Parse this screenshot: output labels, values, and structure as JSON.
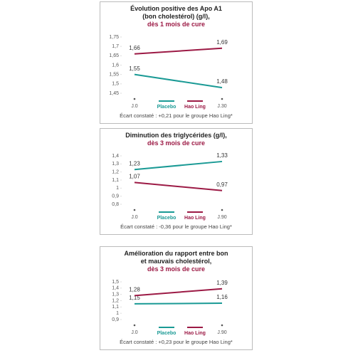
{
  "chart_data": [
    {
      "type": "line",
      "title": "Évolution positive des Apo A1 (bon cholestérol) (g/l),",
      "subtitle": "dès 1 mois de cure",
      "categories": [
        "J.0",
        "J.30"
      ],
      "series": [
        {
          "name": "Placebo",
          "color": "#1a9a95",
          "values": [
            1.55,
            1.48
          ],
          "value_labels": [
            "1,55",
            "1,48"
          ]
        },
        {
          "name": "Hao Ling",
          "color": "#9c1a45",
          "values": [
            1.66,
            1.69
          ],
          "value_labels": [
            "1,66",
            "1,69"
          ]
        }
      ],
      "ylim": [
        1.45,
        1.75
      ],
      "yticks": [
        {
          "value": 1.45,
          "label": "1,45"
        },
        {
          "value": 1.5,
          "label": "1,5"
        },
        {
          "value": 1.55,
          "label": "1,55"
        },
        {
          "value": 1.6,
          "label": "1,6"
        },
        {
          "value": 1.65,
          "label": "1,65"
        },
        {
          "value": 1.7,
          "label": "1,7"
        },
        {
          "value": 1.75,
          "label": "1,75"
        }
      ],
      "note": "Écart constaté : +0,21 pour le groupe Hao Ling*"
    },
    {
      "type": "line",
      "title": "Diminution des triglycérides (g/l),",
      "subtitle": "dès 3 mois de cure",
      "categories": [
        "J.0",
        "J.90"
      ],
      "series": [
        {
          "name": "Placebo",
          "color": "#1a9a95",
          "values": [
            1.23,
            1.33
          ],
          "value_labels": [
            "1,23",
            "1,33"
          ]
        },
        {
          "name": "Hao Ling",
          "color": "#9c1a45",
          "values": [
            1.07,
            0.97
          ],
          "value_labels": [
            "1,07",
            "0,97"
          ]
        }
      ],
      "ylim": [
        0.8,
        1.4
      ],
      "yticks": [
        {
          "value": 0.8,
          "label": "0,8"
        },
        {
          "value": 0.9,
          "label": "0,9"
        },
        1,
        {
          "value": 1.1,
          "label": "1,1"
        },
        {
          "value": 1.2,
          "label": "1,2"
        },
        {
          "value": 1.3,
          "label": "1,3"
        },
        {
          "value": 1.4,
          "label": "1,4"
        }
      ],
      "note": "Écart constaté : -0,36 pour le groupe Hao Ling*"
    },
    {
      "type": "line",
      "title": "Amélioration du rapport entre bon et mauvais cholestérol,",
      "subtitle": "dès 3 mois de cure",
      "categories": [
        "J.0",
        "J.90"
      ],
      "series": [
        {
          "name": "Placebo",
          "color": "#1a9a95",
          "values": [
            1.15,
            1.16
          ],
          "value_labels": [
            "1,15",
            "1,16"
          ]
        },
        {
          "name": "Hao Ling",
          "color": "#9c1a45",
          "values": [
            1.28,
            1.39
          ],
          "value_labels": [
            "1,28",
            "1,39"
          ]
        }
      ],
      "ylim": [
        0.9,
        1.5
      ],
      "yticks": [
        {
          "value": 0.9,
          "label": "0,9"
        },
        1,
        {
          "value": 1.1,
          "label": "1,1"
        },
        {
          "value": 1.2,
          "label": "1,2"
        },
        {
          "value": 1.3,
          "label": "1,3"
        },
        {
          "value": 1.4,
          "label": "1,4"
        },
        {
          "value": 1.5,
          "label": "1,5"
        }
      ],
      "note": "Écart constaté : +0,23 pour le groupe Hao Ling*"
    }
  ]
}
